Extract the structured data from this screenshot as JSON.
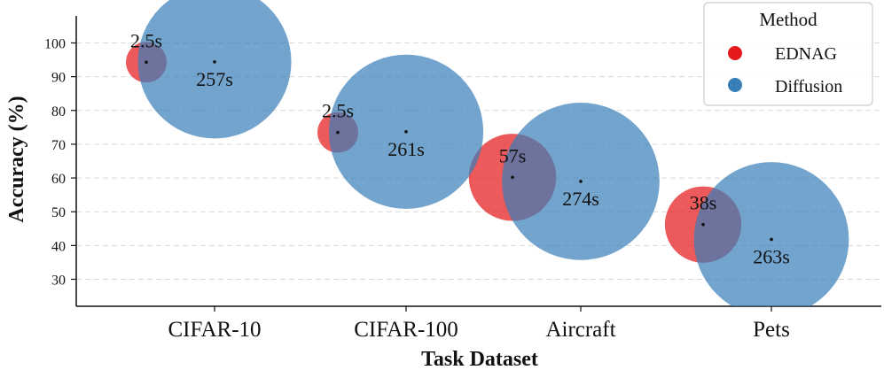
{
  "chart_data": {
    "type": "bubble",
    "xlabel": "Task Dataset",
    "ylabel": "Accuracy (%)",
    "categories": [
      "CIFAR-10",
      "CIFAR-100",
      "Aircraft",
      "Pets"
    ],
    "ylim": [
      22,
      108
    ],
    "yticks": [
      30,
      40,
      50,
      60,
      70,
      80,
      90,
      100
    ],
    "grid": "horizontal dashed",
    "legend": {
      "title": "Method",
      "placement": "top-right",
      "entries": [
        "EDNAG",
        "Diffusion"
      ]
    },
    "series": [
      {
        "name": "EDNAG",
        "color": "#e41a1c",
        "points": [
          {
            "category": "CIFAR-10",
            "accuracy": 94.3,
            "time_s": 2.5,
            "label": "2.5s"
          },
          {
            "category": "CIFAR-100",
            "accuracy": 73.5,
            "time_s": 2.5,
            "label": "2.5s"
          },
          {
            "category": "Aircraft",
            "accuracy": 60.2,
            "time_s": 57,
            "label": "57s"
          },
          {
            "category": "Pets",
            "accuracy": 46.2,
            "time_s": 38,
            "label": "38s"
          }
        ]
      },
      {
        "name": "Diffusion",
        "color": "#377eb8",
        "points": [
          {
            "category": "CIFAR-10",
            "accuracy": 94.4,
            "time_s": 257,
            "label": "257s"
          },
          {
            "category": "CIFAR-100",
            "accuracy": 73.7,
            "time_s": 261,
            "label": "261s"
          },
          {
            "category": "Aircraft",
            "accuracy": 59.0,
            "time_s": 274,
            "label": "274s"
          },
          {
            "category": "Pets",
            "accuracy": 41.8,
            "time_s": 263,
            "label": "263s"
          }
        ]
      }
    ]
  }
}
